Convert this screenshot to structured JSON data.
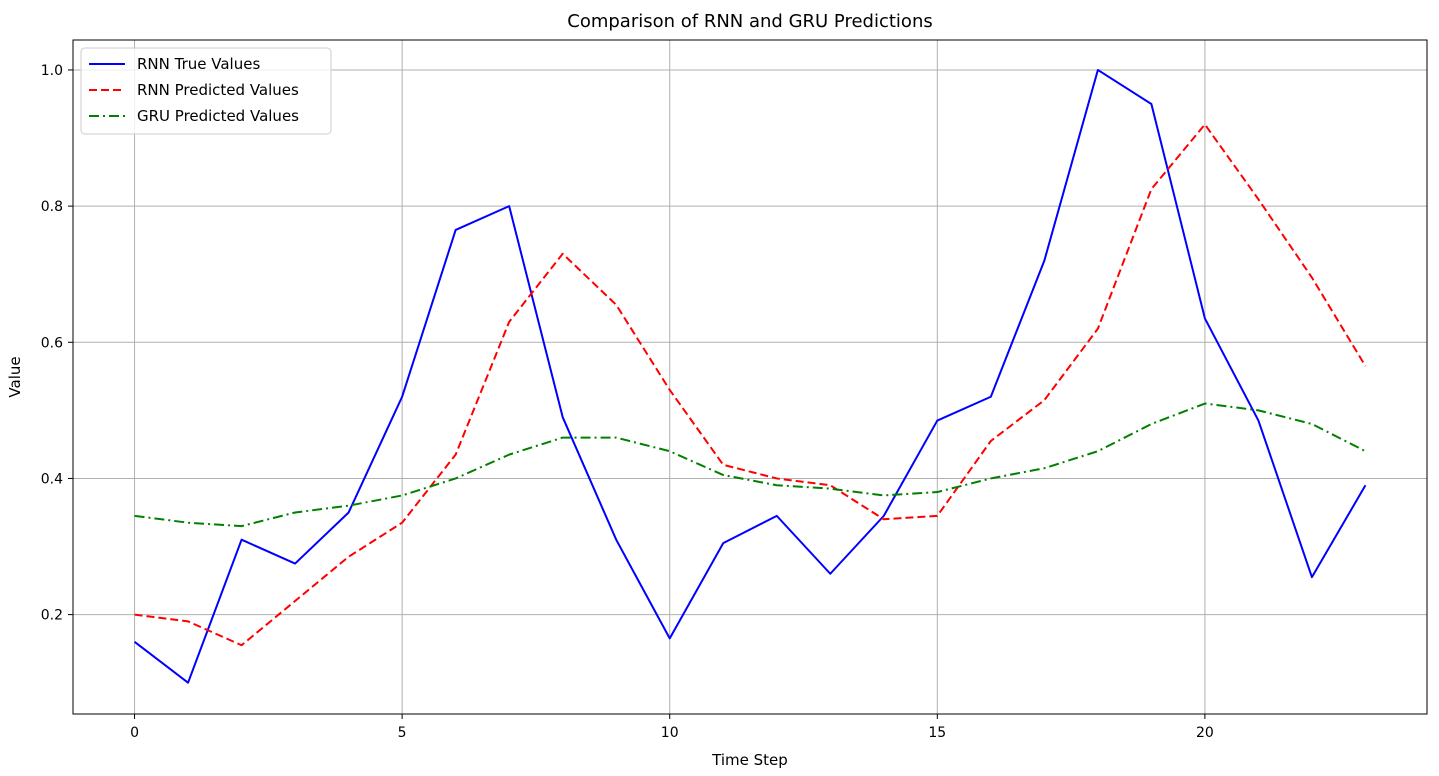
{
  "chart_data": {
    "type": "line",
    "title": "Comparison of RNN and GRU Predictions",
    "xlabel": "Time Step",
    "ylabel": "Value",
    "xlim": [
      -1.15,
      24.15
    ],
    "ylim": [
      0.054,
      1.044
    ],
    "xticks": [
      0,
      5,
      10,
      15,
      20
    ],
    "xtick_labels": [
      "0",
      "5",
      "10",
      "15",
      "20"
    ],
    "yticks": [
      0.2,
      0.4,
      0.6,
      0.8,
      1.0
    ],
    "ytick_labels": [
      "0.2",
      "0.4",
      "0.6",
      "0.8",
      "1.0"
    ],
    "grid": true,
    "legend_position": "top-left",
    "x": [
      0,
      1,
      2,
      3,
      4,
      5,
      6,
      7,
      8,
      9,
      10,
      11,
      12,
      13,
      14,
      15,
      16,
      17,
      18,
      19,
      20,
      21,
      22,
      23
    ],
    "series": [
      {
        "name": "RNN True Values",
        "color": "#0000ff",
        "style": "solid",
        "values": [
          0.16,
          0.1,
          0.31,
          0.275,
          0.35,
          0.52,
          0.765,
          0.8,
          0.49,
          0.31,
          0.165,
          0.305,
          0.345,
          0.26,
          0.345,
          0.485,
          0.52,
          0.72,
          1.0,
          0.95,
          0.635,
          0.485,
          0.255,
          0.39
        ]
      },
      {
        "name": "RNN Predicted Values",
        "color": "#ff0000",
        "style": "dashed",
        "values": [
          0.2,
          0.19,
          0.155,
          0.22,
          0.285,
          0.335,
          0.435,
          0.63,
          0.73,
          0.655,
          0.53,
          0.42,
          0.4,
          0.39,
          0.34,
          0.345,
          0.455,
          0.515,
          0.62,
          0.825,
          0.92,
          0.81,
          0.695,
          0.565
        ]
      },
      {
        "name": "GRU Predicted Values",
        "color": "#008000",
        "style": "dashdot",
        "values": [
          0.345,
          0.335,
          0.33,
          0.35,
          0.36,
          0.375,
          0.4,
          0.435,
          0.46,
          0.46,
          0.44,
          0.405,
          0.39,
          0.385,
          0.375,
          0.38,
          0.4,
          0.415,
          0.44,
          0.48,
          0.51,
          0.5,
          0.48,
          0.44
        ]
      }
    ]
  }
}
